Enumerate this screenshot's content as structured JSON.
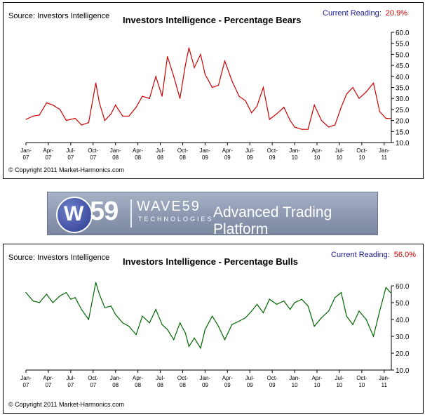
{
  "bears": {
    "source": "Source: Investors Intelligence",
    "title": "Investors Intelligence - Percentage Bears",
    "reading_label": "Current Reading:",
    "reading_value": "20.9%",
    "copyright": "© Copyright 2011 Market-Harmonics.com",
    "line_color": "#cc0000"
  },
  "bulls": {
    "source": "Source: Investors Intelligence",
    "title": "Investors Intelligence - Percentage Bulls",
    "reading_label": "Current Reading:",
    "reading_value": "56.0%",
    "copyright": "© Copyright 2011 Market-Harmonics.com",
    "line_color": "#006600"
  },
  "banner": {
    "logo_w": "W",
    "logo_59": "59",
    "brand": "WAVE59",
    "brand_sub": "TECHNOLOGIES",
    "tagline": "Advanced Trading Platform"
  },
  "chart_data": [
    {
      "type": "line",
      "title": "Investors Intelligence - Percentage Bears",
      "xlabel": "",
      "ylabel": "",
      "ylim": [
        10,
        60
      ],
      "yticks": [
        "60.0",
        "55.0",
        "50.0",
        "45.0",
        "40.0",
        "35.0",
        "30.0",
        "25.0",
        "20.0",
        "15.0",
        "10.0"
      ],
      "xticks": [
        [
          "Jan-",
          "07"
        ],
        [
          "Apr-",
          "07"
        ],
        [
          "Jul-",
          "07"
        ],
        [
          "Oct-",
          "07"
        ],
        [
          "Jan-",
          "08"
        ],
        [
          "Apr-",
          "08"
        ],
        [
          "Jul-",
          "08"
        ],
        [
          "Oct-",
          "08"
        ],
        [
          "Jan-",
          "09"
        ],
        [
          "Apr-",
          "09"
        ],
        [
          "Jul-",
          "09"
        ],
        [
          "Oct-",
          "09"
        ],
        [
          "Jan-",
          "10"
        ],
        [
          "Apr-",
          "10"
        ],
        [
          "Jul-",
          "10"
        ],
        [
          "Oct-",
          "10"
        ],
        [
          "Jan-",
          "11"
        ]
      ],
      "series": [
        {
          "name": "Percentage Bears",
          "x": [
            2007.0,
            2007.08,
            2007.15,
            2007.23,
            2007.3,
            2007.38,
            2007.45,
            2007.5,
            2007.55,
            2007.62,
            2007.7,
            2007.78,
            2007.82,
            2007.88,
            2007.95,
            2008.0,
            2008.08,
            2008.15,
            2008.23,
            2008.3,
            2008.38,
            2008.45,
            2008.52,
            2008.58,
            2008.65,
            2008.72,
            2008.78,
            2008.82,
            2008.88,
            2008.95,
            2009.0,
            2009.08,
            2009.15,
            2009.22,
            2009.3,
            2009.38,
            2009.45,
            2009.52,
            2009.58,
            2009.65,
            2009.72,
            2009.8,
            2009.88,
            2009.95,
            2010.0,
            2010.08,
            2010.15,
            2010.22,
            2010.3,
            2010.38,
            2010.45,
            2010.52,
            2010.58,
            2010.65,
            2010.72,
            2010.8,
            2010.88,
            2010.95,
            2011.02,
            2011.07
          ],
          "values": [
            20.5,
            22,
            22.5,
            28,
            27,
            25,
            20,
            20.5,
            21,
            18,
            19,
            37,
            28,
            20,
            23,
            27,
            22,
            22,
            26,
            31,
            30,
            40,
            31,
            49,
            40,
            30,
            45,
            53,
            44,
            50,
            41,
            35,
            36,
            47,
            38,
            31,
            29,
            23.5,
            26.5,
            35,
            20.5,
            23,
            26,
            20,
            17,
            16,
            16,
            27,
            20,
            17,
            18,
            26,
            32,
            35,
            30,
            33,
            37,
            24,
            21,
            20.9
          ]
        }
      ]
    },
    {
      "type": "line",
      "title": "Investors Intelligence - Percentage Bulls",
      "xlabel": "",
      "ylabel": "",
      "ylim": [
        10,
        60
      ],
      "yticks": [
        "60.0",
        "50.0",
        "40.0",
        "30.0",
        "20.0",
        "10.0"
      ],
      "xticks": [
        [
          "Jan-",
          "07"
        ],
        [
          "Apr-",
          "07"
        ],
        [
          "Jul-",
          "07"
        ],
        [
          "Oct-",
          "07"
        ],
        [
          "Jan-",
          "08"
        ],
        [
          "Apr-",
          "08"
        ],
        [
          "Jul-",
          "08"
        ],
        [
          "Oct-",
          "08"
        ],
        [
          "Jan-",
          "09"
        ],
        [
          "Apr-",
          "09"
        ],
        [
          "Jul-",
          "09"
        ],
        [
          "Oct-",
          "09"
        ],
        [
          "Jan-",
          "10"
        ],
        [
          "Apr-",
          "10"
        ],
        [
          "Jul-",
          "10"
        ],
        [
          "Oct-",
          "10"
        ],
        [
          "Jan-",
          "11"
        ]
      ],
      "series": [
        {
          "name": "Percentage Bulls",
          "x": [
            2007.0,
            2007.08,
            2007.15,
            2007.23,
            2007.3,
            2007.38,
            2007.45,
            2007.5,
            2007.55,
            2007.62,
            2007.7,
            2007.78,
            2007.82,
            2007.88,
            2007.95,
            2008.0,
            2008.08,
            2008.15,
            2008.23,
            2008.3,
            2008.38,
            2008.45,
            2008.52,
            2008.58,
            2008.65,
            2008.72,
            2008.78,
            2008.82,
            2008.88,
            2008.95,
            2009.0,
            2009.08,
            2009.15,
            2009.22,
            2009.3,
            2009.38,
            2009.45,
            2009.52,
            2009.58,
            2009.65,
            2009.72,
            2009.8,
            2009.88,
            2009.95,
            2010.0,
            2010.08,
            2010.15,
            2010.22,
            2010.3,
            2010.38,
            2010.45,
            2010.52,
            2010.58,
            2010.65,
            2010.72,
            2010.8,
            2010.88,
            2010.95,
            2011.02,
            2011.07
          ],
          "values": [
            56,
            51,
            50,
            55,
            50,
            54,
            56,
            52,
            53,
            46,
            40,
            62,
            55,
            47,
            48,
            43,
            38,
            36,
            31,
            42,
            38,
            46,
            37,
            34,
            28,
            38,
            32,
            24,
            29,
            23,
            34,
            42,
            36,
            28,
            37,
            39,
            41,
            45,
            49,
            44,
            52,
            49,
            51,
            46,
            50,
            52,
            48,
            36,
            41,
            45,
            53,
            56,
            42,
            37,
            45,
            40,
            30,
            45,
            59,
            56
          ]
        }
      ]
    }
  ]
}
